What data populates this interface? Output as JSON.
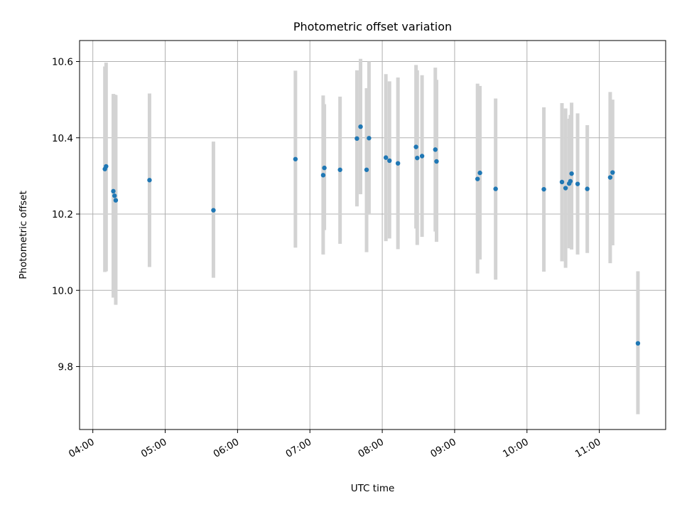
{
  "chart_data": {
    "type": "scatter",
    "title": "Photometric offset variation",
    "xlabel": "UTC time",
    "ylabel": "Photometric offset",
    "x_ticks": [
      "04:00",
      "05:00",
      "06:00",
      "07:00",
      "08:00",
      "09:00",
      "10:00",
      "11:00"
    ],
    "y_ticks": [
      "9.8",
      "10.0",
      "10.2",
      "10.4",
      "10.6"
    ],
    "xlim": [
      "03:49",
      "11:55"
    ],
    "ylim": [
      9.635,
      10.655
    ],
    "grid": true,
    "point_color": "#1f77b4",
    "errorbar_color": "#d3d3d3",
    "points": [
      {
        "time": "04:10",
        "y": 10.318,
        "lo": 10.048,
        "hi": 10.587
      },
      {
        "time": "04:11",
        "y": 10.325,
        "lo": 10.05,
        "hi": 10.597
      },
      {
        "time": "04:17",
        "y": 10.26,
        "lo": 9.981,
        "hi": 10.515
      },
      {
        "time": "04:18",
        "y": 10.248,
        "lo": 9.984,
        "hi": 10.513
      },
      {
        "time": "04:19",
        "y": 10.236,
        "lo": 9.962,
        "hi": 10.512
      },
      {
        "time": "04:47",
        "y": 10.289,
        "lo": 10.061,
        "hi": 10.516
      },
      {
        "time": "05:40",
        "y": 10.21,
        "lo": 10.033,
        "hi": 10.39
      },
      {
        "time": "06:48",
        "y": 10.344,
        "lo": 10.112,
        "hi": 10.576
      },
      {
        "time": "07:11",
        "y": 10.302,
        "lo": 10.094,
        "hi": 10.511
      },
      {
        "time": "07:12",
        "y": 10.321,
        "lo": 10.158,
        "hi": 10.488
      },
      {
        "time": "07:25",
        "y": 10.316,
        "lo": 10.122,
        "hi": 10.508
      },
      {
        "time": "07:39",
        "y": 10.398,
        "lo": 10.22,
        "hi": 10.577
      },
      {
        "time": "07:42",
        "y": 10.429,
        "lo": 10.252,
        "hi": 10.607
      },
      {
        "time": "07:47",
        "y": 10.316,
        "lo": 10.1,
        "hi": 10.53
      },
      {
        "time": "07:49",
        "y": 10.399,
        "lo": 10.2,
        "hi": 10.6
      },
      {
        "time": "08:03",
        "y": 10.348,
        "lo": 10.129,
        "hi": 10.567
      },
      {
        "time": "08:06",
        "y": 10.34,
        "lo": 10.136,
        "hi": 10.548
      },
      {
        "time": "08:13",
        "y": 10.333,
        "lo": 10.108,
        "hi": 10.558
      },
      {
        "time": "08:28",
        "y": 10.376,
        "lo": 10.162,
        "hi": 10.591
      },
      {
        "time": "08:29",
        "y": 10.347,
        "lo": 10.119,
        "hi": 10.577
      },
      {
        "time": "08:33",
        "y": 10.352,
        "lo": 10.14,
        "hi": 10.564
      },
      {
        "time": "08:44",
        "y": 10.369,
        "lo": 10.154,
        "hi": 10.584
      },
      {
        "time": "08:45",
        "y": 10.338,
        "lo": 10.127,
        "hi": 10.552
      },
      {
        "time": "09:19",
        "y": 10.292,
        "lo": 10.044,
        "hi": 10.542
      },
      {
        "time": "09:21",
        "y": 10.308,
        "lo": 10.081,
        "hi": 10.536
      },
      {
        "time": "09:34",
        "y": 10.266,
        "lo": 10.028,
        "hi": 10.503
      },
      {
        "time": "10:14",
        "y": 10.265,
        "lo": 10.049,
        "hi": 10.48
      },
      {
        "time": "10:29",
        "y": 10.284,
        "lo": 10.076,
        "hi": 10.491
      },
      {
        "time": "10:32",
        "y": 10.268,
        "lo": 10.059,
        "hi": 10.477
      },
      {
        "time": "10:35",
        "y": 10.28,
        "lo": 10.11,
        "hi": 10.45
      },
      {
        "time": "10:36",
        "y": 10.286,
        "lo": 10.12,
        "hi": 10.46
      },
      {
        "time": "10:37",
        "y": 10.306,
        "lo": 10.107,
        "hi": 10.492
      },
      {
        "time": "10:42",
        "y": 10.279,
        "lo": 10.094,
        "hi": 10.464
      },
      {
        "time": "10:50",
        "y": 10.266,
        "lo": 10.098,
        "hi": 10.433
      },
      {
        "time": "11:09",
        "y": 10.296,
        "lo": 10.071,
        "hi": 10.52
      },
      {
        "time": "11:11",
        "y": 10.309,
        "lo": 10.118,
        "hi": 10.5
      },
      {
        "time": "11:32",
        "y": 9.861,
        "lo": 9.675,
        "hi": 10.05
      }
    ]
  }
}
